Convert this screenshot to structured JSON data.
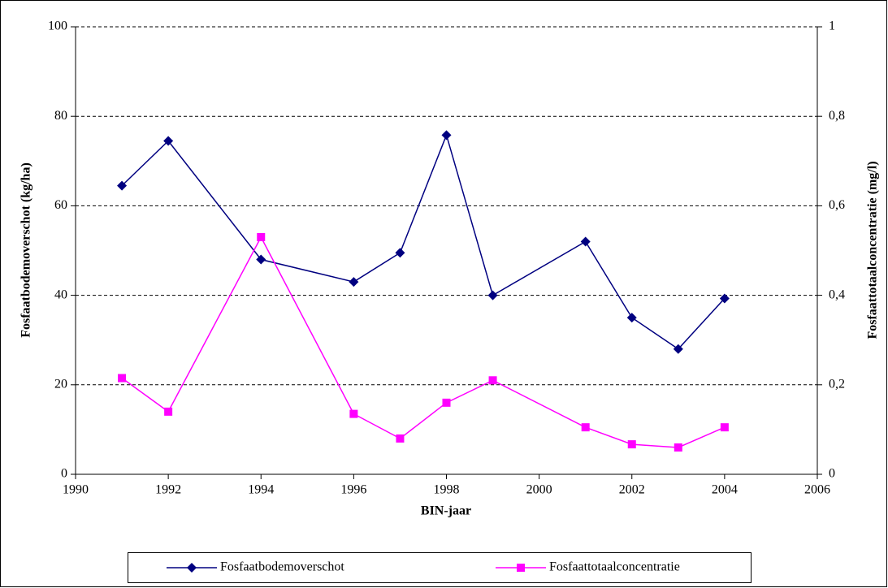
{
  "chart_data": {
    "type": "line",
    "x_label": "BIN-jaar",
    "y_label": "Fosfaatbodemoverschot (kg/ha)",
    "y2_label": "Fosfaattotaalconcentratie (mg/l)",
    "x": [
      1991,
      1992,
      1994,
      1996,
      1997,
      1998,
      1999,
      2001,
      2002,
      2003,
      2004
    ],
    "series": [
      {
        "name": "Fosfaatbodemoverschot",
        "color": "#000080",
        "marker": "diamond",
        "values": [
          64.5,
          74.5,
          48,
          43,
          49.5,
          75.8,
          40,
          52,
          35,
          28,
          39.3
        ]
      },
      {
        "name": "Fosfaattotaalconcentratie",
        "color": "#ff00ff",
        "marker": "square",
        "axis": "y2",
        "values": [
          0.215,
          0.14,
          0.53,
          0.135,
          0.08,
          0.16,
          0.21,
          0.105,
          0.067,
          0.06,
          0.105
        ]
      }
    ],
    "xlim": [
      1990,
      2006
    ],
    "xticks": [
      1990,
      1992,
      1994,
      1996,
      1998,
      2000,
      2002,
      2004,
      2006
    ],
    "ylim": [
      0,
      100
    ],
    "yticks": [
      0,
      20,
      40,
      60,
      80,
      100
    ],
    "y2lim": [
      0,
      1
    ],
    "y2ticks": [
      0,
      {
        "value": 0.2,
        "label": "0,2"
      },
      {
        "value": 0.4,
        "label": "0,4"
      },
      {
        "value": 0.6,
        "label": "0,6"
      },
      {
        "value": 0.8,
        "label": "0,8"
      },
      1
    ],
    "grid": true,
    "legend": "bottom"
  }
}
